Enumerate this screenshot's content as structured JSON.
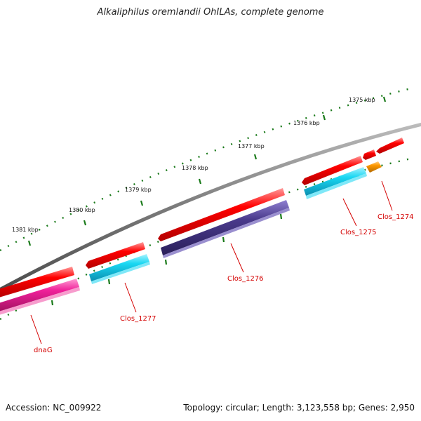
{
  "title": "Alkaliphilus oremlandii OhILAs, complete genome",
  "footer": {
    "accession": "Accession: NC_009922",
    "stats": "Topology: circular; Length: 3,123,558 bp; Genes: 2,950"
  },
  "kbp_labels": [
    "1375 kbp",
    "1376 kbp",
    "1377 kbp",
    "1378 kbp",
    "1379 kbp",
    "1380 kbp",
    "1381 kbp"
  ],
  "gene_labels": [
    "Clos_1274",
    "Clos_1275",
    "Clos_1276",
    "Clos_1277",
    "dnaG"
  ],
  "colors": {
    "backbone": "#7a7a7a",
    "ticks": "#1a7a1a",
    "red": "#ff0000",
    "cyan": "#19d7f2",
    "navy": "#4a3a8c",
    "magenta": "#f0209a",
    "orange": "#ff9900",
    "label": "#d40000"
  }
}
